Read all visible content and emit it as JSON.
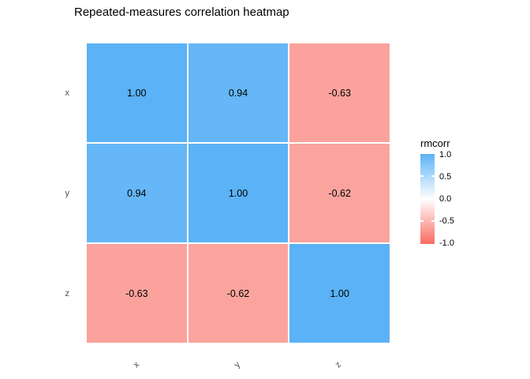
{
  "chart_data": {
    "type": "heatmap",
    "title": "Repeated-measures correlation heatmap",
    "x_tick_labels": [
      "x",
      "y",
      "z"
    ],
    "y_tick_labels": [
      "x",
      "y",
      "z"
    ],
    "matrix": [
      [
        1.0,
        0.94,
        -0.63
      ],
      [
        0.94,
        1.0,
        -0.62
      ],
      [
        -0.63,
        -0.62,
        1.0
      ]
    ],
    "cell_labels": [
      [
        "1.00",
        "0.94",
        "-0.63"
      ],
      [
        "0.94",
        "1.00",
        "-0.62"
      ],
      [
        "-0.63",
        "-0.62",
        "1.00"
      ]
    ],
    "cell_colors": [
      [
        "#5BB2F6",
        "#65B7F7",
        "#FBA29C"
      ],
      [
        "#65B7F7",
        "#5BB2F6",
        "#FBA49E"
      ],
      [
        "#FBA29C",
        "#FBA49E",
        "#5BB2F6"
      ]
    ],
    "legend": {
      "title": "rmcorr",
      "tick_labels": [
        "1.0",
        "0.5",
        "0.0",
        "-0.5",
        "-1.0"
      ],
      "range": [
        -1.0,
        1.0
      ],
      "high_color": "#5BB2F6",
      "mid_color": "#FFFFFF",
      "low_color": "#F96B62",
      "position": "right"
    },
    "grid": false,
    "background_color": "#FFFFFF",
    "axis_text_color": "#4D4D4D"
  }
}
